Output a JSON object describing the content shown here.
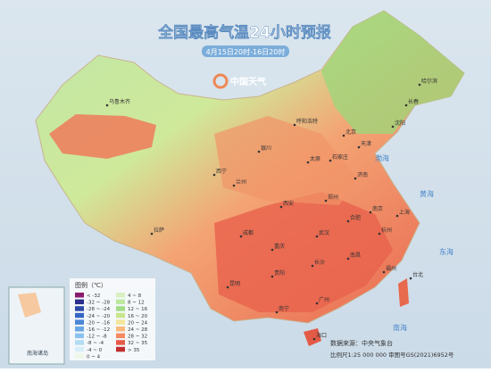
{
  "header": {
    "title": "全国最高气温24小时预报",
    "subtitle": "4月15日20时-16日20时",
    "logo": "中国天气"
  },
  "legend": {
    "title": "图例（℃）",
    "items": [
      {
        "label": "< -32",
        "color": "#8a1a6e"
      },
      {
        "label": "-32 ~ -28",
        "color": "#2a2f8c"
      },
      {
        "label": "-28 ~ -24",
        "color": "#2c4aa6"
      },
      {
        "label": "-24 ~ -20",
        "color": "#3566c2"
      },
      {
        "label": "-20 ~ -16",
        "color": "#4a86d6"
      },
      {
        "label": "-16 ~ -12",
        "color": "#6aa6e4"
      },
      {
        "label": "-12 ~ -8",
        "color": "#8cc2ee"
      },
      {
        "label": "-8 ~ -4",
        "color": "#b2dcf4"
      },
      {
        "label": "-4 ~ 0",
        "color": "#d6eef8"
      },
      {
        "label": "0 ~ 4",
        "color": "#eef8e8"
      },
      {
        "label": "4 ~ 8",
        "color": "#d8f0c0"
      },
      {
        "label": "8 ~ 12",
        "color": "#bde8a0"
      },
      {
        "label": "12 ~ 16",
        "color": "#a2dc86"
      },
      {
        "label": "16 ~ 20",
        "color": "#c8e68a"
      },
      {
        "label": "20 ~ 24",
        "color": "#f4e69a"
      },
      {
        "label": "24 ~ 28",
        "color": "#f9b97a"
      },
      {
        "label": "28 ~ 32",
        "color": "#f38a60"
      },
      {
        "label": "32 ~ 35",
        "color": "#e55a48"
      },
      {
        "label": "> 35",
        "color": "#c22e2e"
      }
    ]
  },
  "source": {
    "data": "数据来源：中央气象台",
    "scale": "比例尺1:25 000 000 审图号GS(2021)6952号"
  },
  "inset": {
    "label": "南海诸岛"
  },
  "cities": [
    "乌鲁木齐",
    "拉萨",
    "西宁",
    "兰州",
    "银川",
    "呼和浩特",
    "北京",
    "天津",
    "石家庄",
    "太原",
    "济南",
    "郑州",
    "西安",
    "成都",
    "重庆",
    "武汉",
    "合肥",
    "南京",
    "上海",
    "杭州",
    "长沙",
    "南昌",
    "福州",
    "贵阳",
    "昆明",
    "南宁",
    "广州",
    "海口",
    "台北",
    "沈阳",
    "长春",
    "哈尔滨"
  ],
  "seas": [
    "渤海",
    "黄海",
    "东海",
    "南海"
  ]
}
